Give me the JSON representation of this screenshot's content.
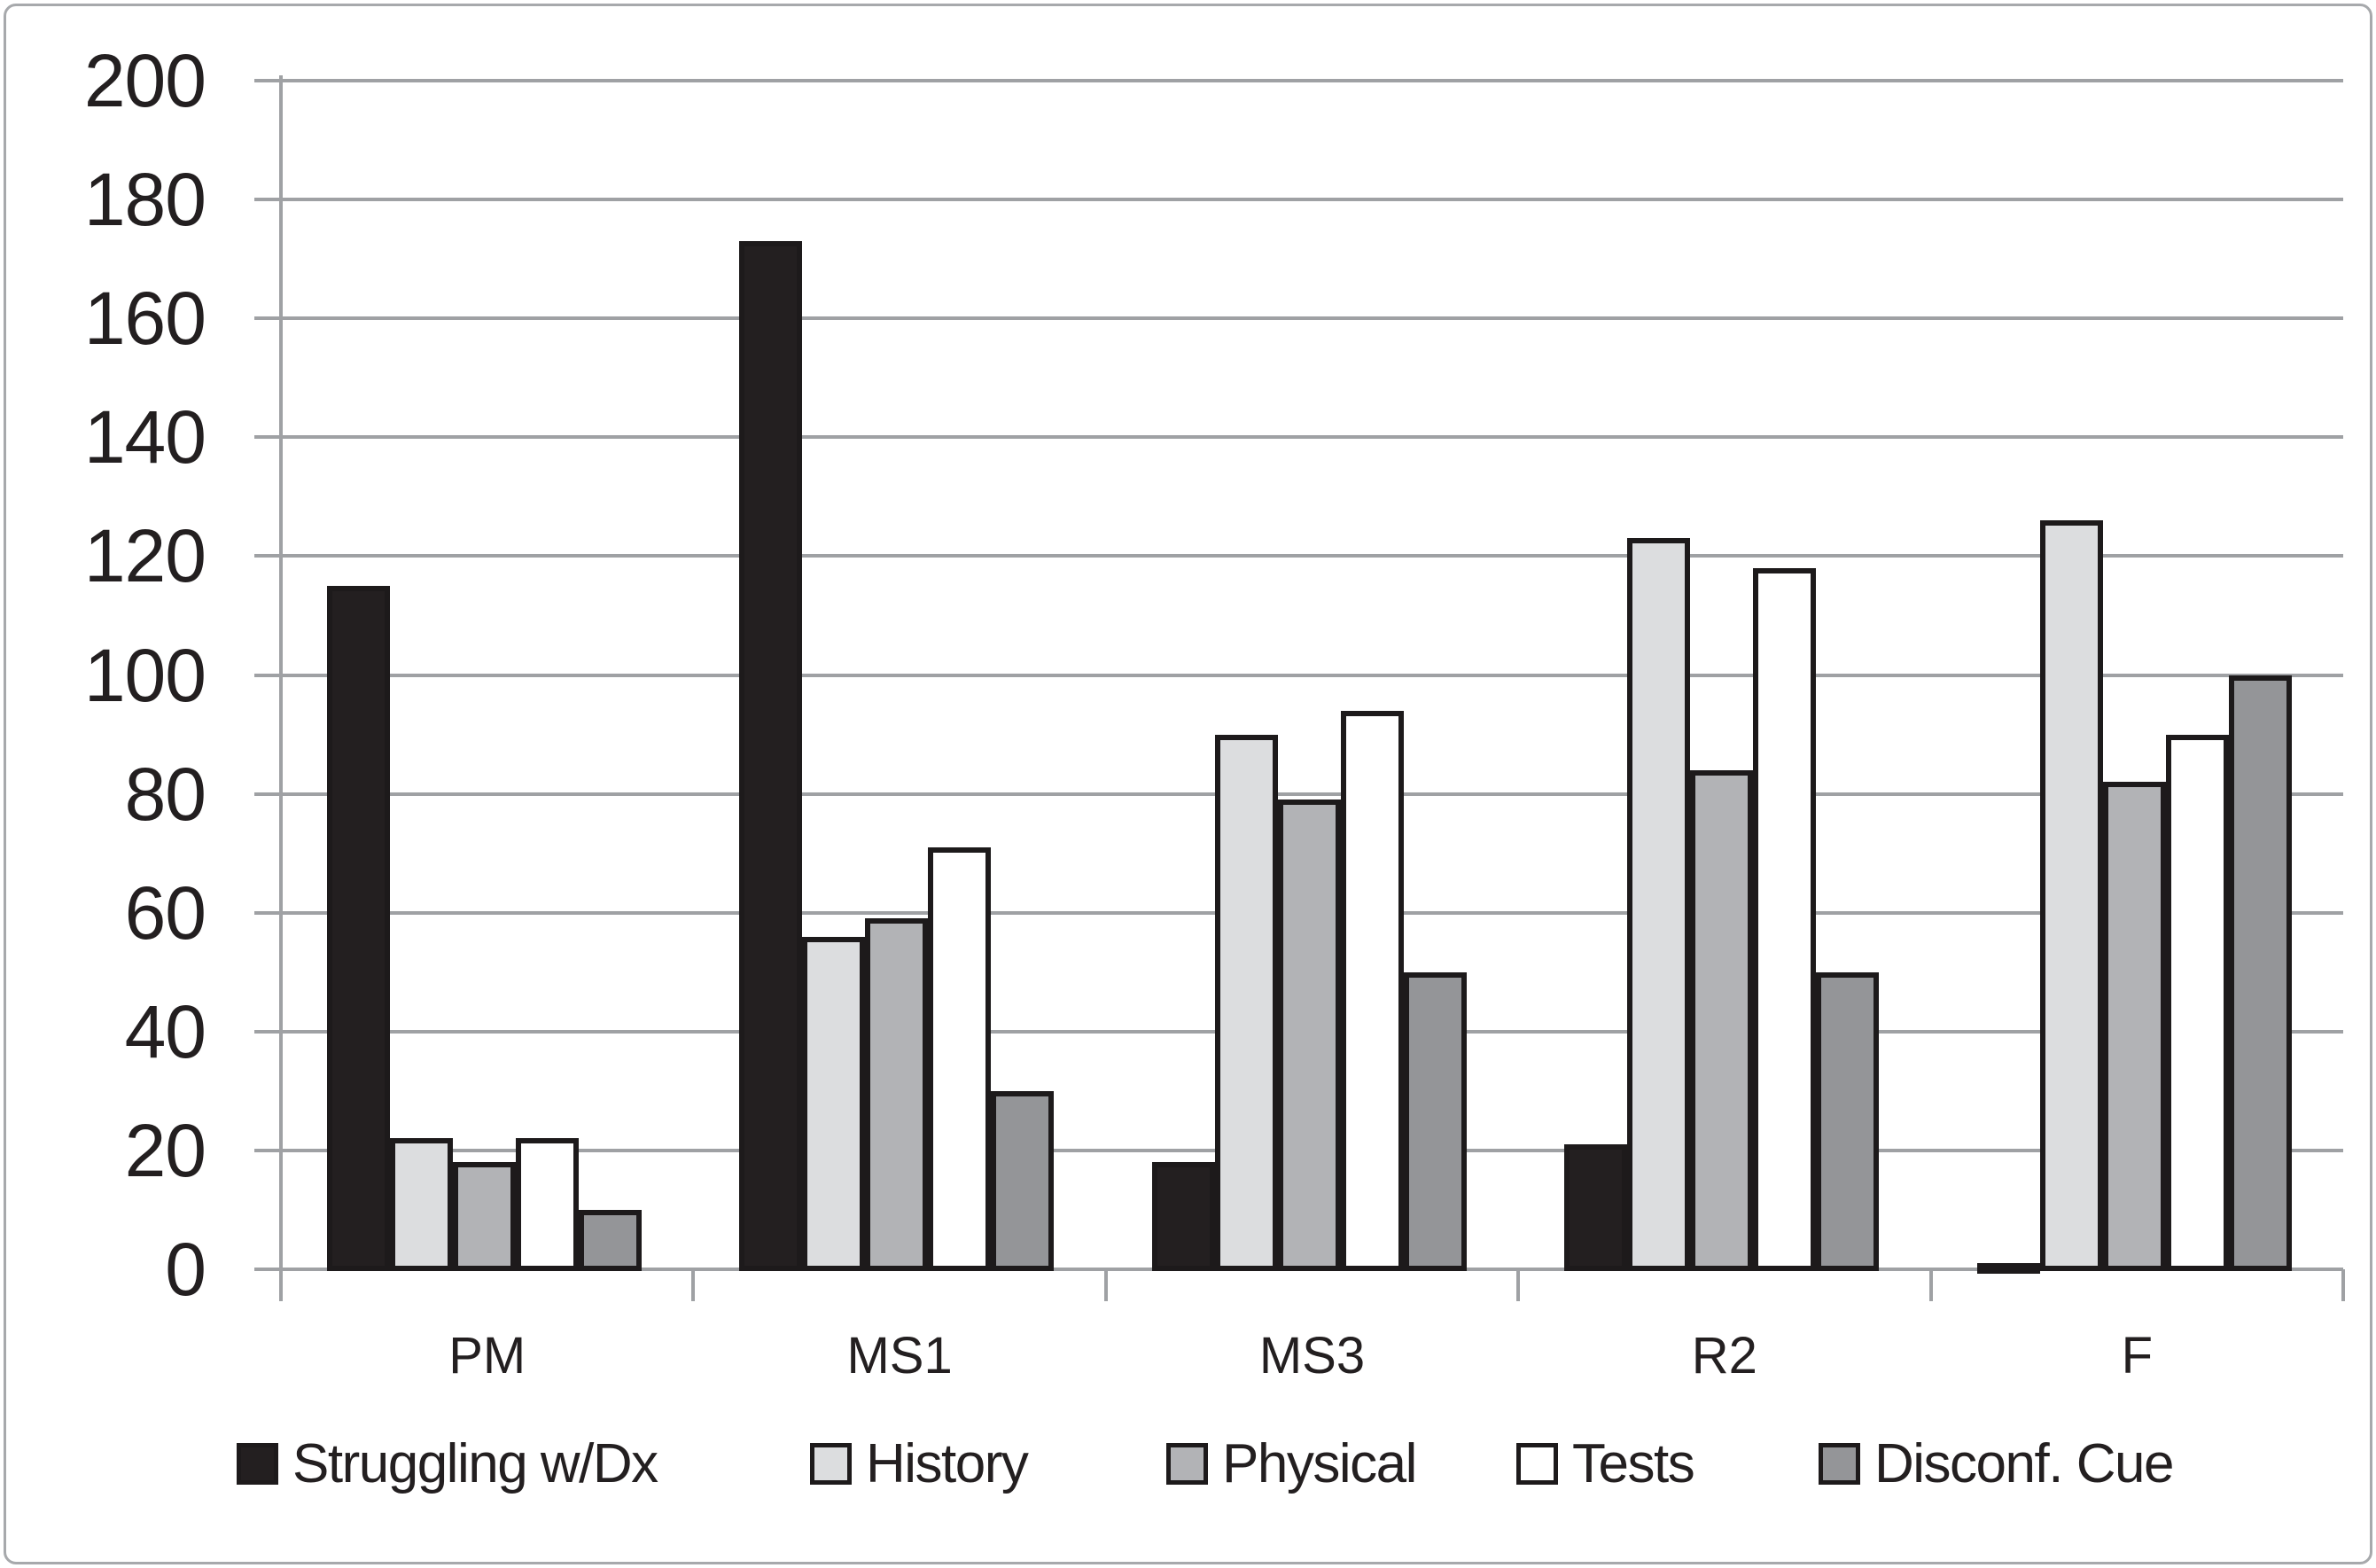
{
  "chart_data": {
    "type": "bar",
    "title": "",
    "xlabel": "",
    "ylabel": "",
    "categories": [
      "PM",
      "MS1",
      "MS3",
      "R2",
      "F"
    ],
    "series": [
      {
        "name": "Struggling w/Dx",
        "color": "#231f20",
        "values": [
          115,
          173,
          18,
          21,
          1
        ]
      },
      {
        "name": "History",
        "color": "#dcdddf",
        "values": [
          22,
          56,
          90,
          123,
          126
        ]
      },
      {
        "name": "Physical",
        "color": "#b2b3b6",
        "values": [
          18,
          59,
          79,
          84,
          82
        ]
      },
      {
        "name": "Tests",
        "color": "#ffffff",
        "values": [
          22,
          71,
          94,
          118,
          90
        ]
      },
      {
        "name": "Disconf. Cue",
        "color": "#949598",
        "values": [
          10,
          30,
          50,
          50,
          100
        ]
      }
    ],
    "ylim": [
      0,
      200
    ],
    "ytick_step": 20,
    "ytick_labels": [
      "0",
      "20",
      "40",
      "60",
      "80",
      "100",
      "120",
      "140",
      "160",
      "180",
      "200"
    ],
    "grid": "horizontal",
    "legend_position": "bottom",
    "colors": {
      "gridline": "#9fa1a4",
      "bar_border": "#1d1a1b",
      "text": "#231f20",
      "frame_border": "#a7a9ac",
      "background": "#ffffff"
    }
  }
}
